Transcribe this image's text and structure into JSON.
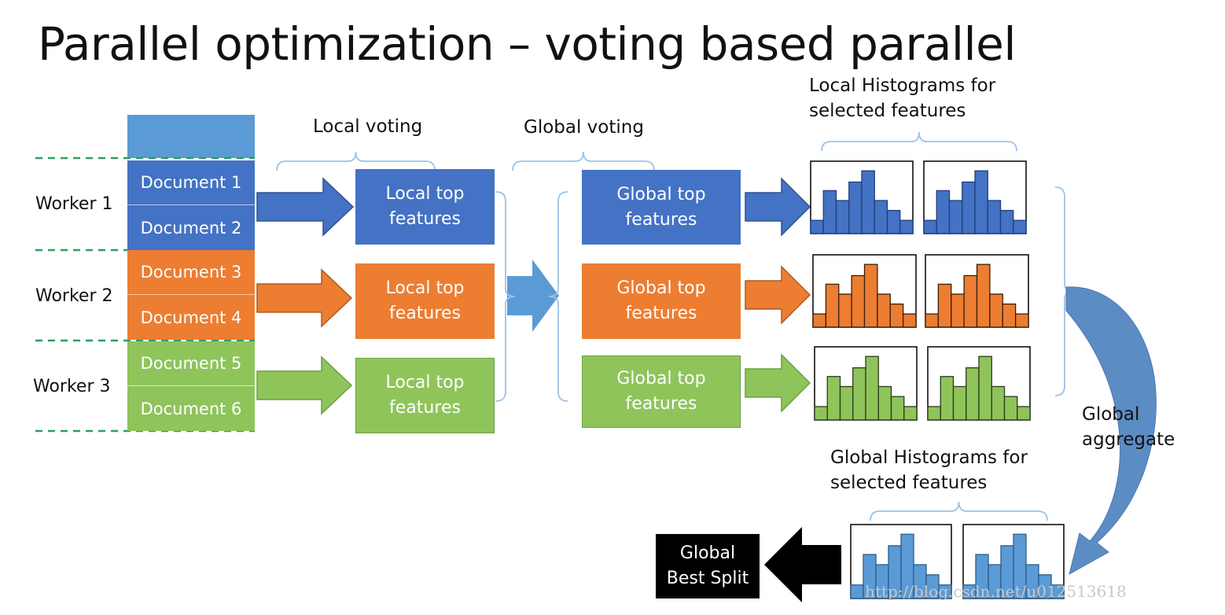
{
  "title": "Parallel optimization – voting based parallel",
  "labels": {
    "local_voting": "Local voting",
    "global_voting": "Global voting",
    "local_hist_line1": "Local Histograms for",
    "local_hist_line2": "selected features",
    "global_hist_line1": "Global Histograms for",
    "global_hist_line2": "selected features",
    "global_aggregate_line1": "Global",
    "global_aggregate_line2": "aggregate"
  },
  "workers": [
    "Worker 1",
    "Worker 2",
    "Worker 3"
  ],
  "documents": [
    "Document 1",
    "Document 2",
    "Document 3",
    "Document 4",
    "Document 5",
    "Document 6"
  ],
  "local_boxes": [
    {
      "line1": "Local top",
      "line2": "features"
    },
    {
      "line1": "Local top",
      "line2": "features"
    },
    {
      "line1": "Local top",
      "line2": "features"
    }
  ],
  "global_boxes": [
    {
      "line1": "Global top",
      "line2": "features"
    },
    {
      "line1": "Global top",
      "line2": "features"
    },
    {
      "line1": "Global top",
      "line2": "features"
    }
  ],
  "best_split": {
    "line1": "Global",
    "line2": "Best Split"
  },
  "watermark": "http://blog.csdn.net/u012513618",
  "colors": {
    "worker1": "#4472c4",
    "worker2": "#ed7d31",
    "worker3": "#8fc45b",
    "global_hist": "#5b9bd5",
    "header_block": "#5b9bd5",
    "bracket": "#9dc3e6",
    "dashed": "#2e9e5b"
  },
  "histogram_levels": [
    0.2,
    0.65,
    0.5,
    0.78,
    0.95,
    0.5,
    0.35,
    0.2
  ]
}
